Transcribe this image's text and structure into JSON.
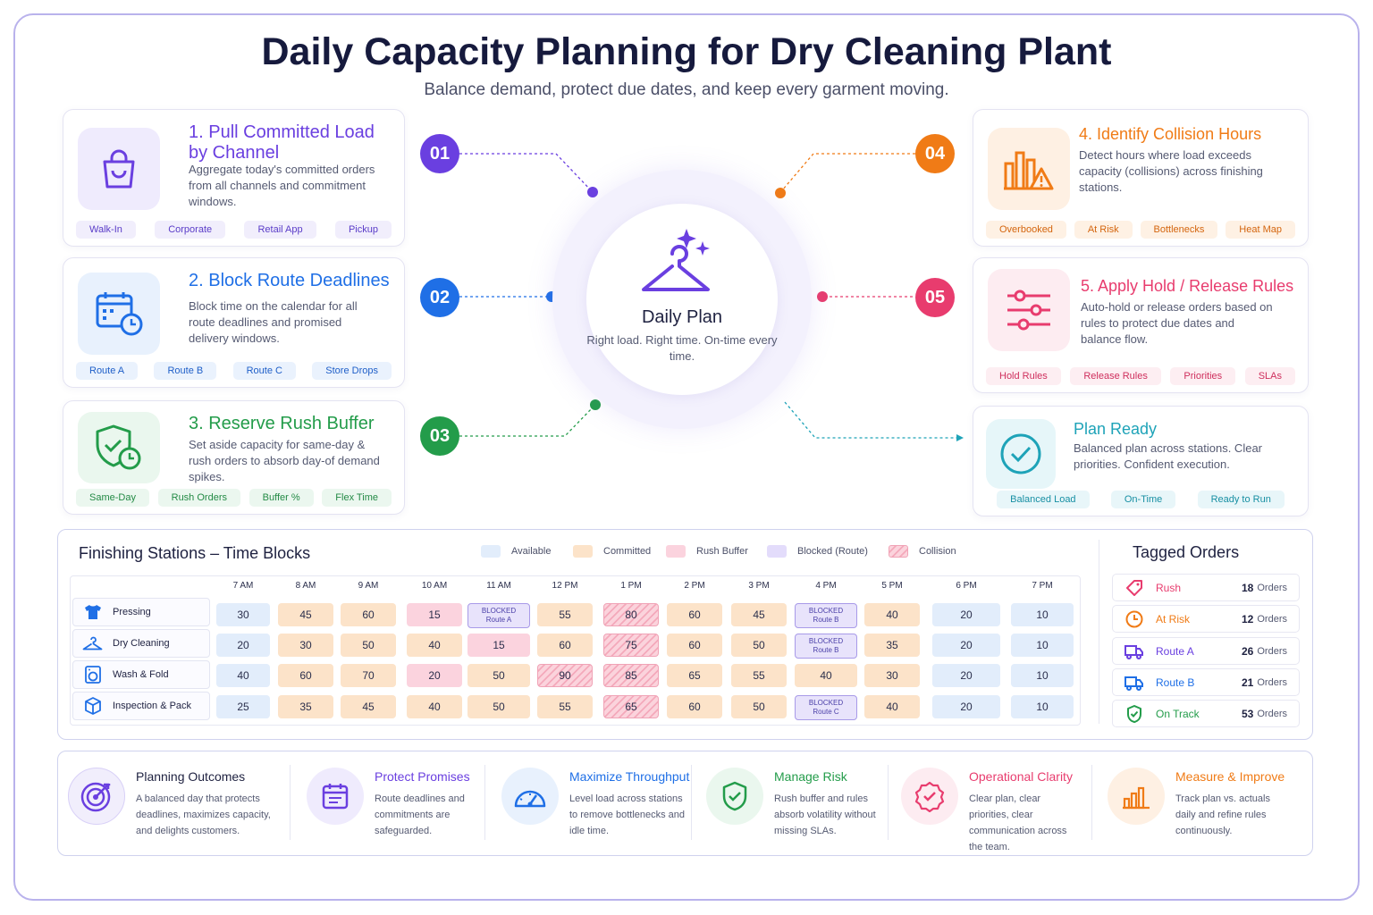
{
  "header": {
    "title": "Daily Capacity Planning for Dry Cleaning Plant",
    "subtitle": "Balance demand, protect due dates, and keep every garment moving."
  },
  "colors": {
    "purple": "#6a3fe0",
    "blue": "#1f6fe6",
    "green": "#239c4a",
    "orange": "#f07b16",
    "pink": "#e83c6e",
    "teal": "#1ea3b8"
  },
  "steps": [
    {
      "num": "01",
      "title": "1. Pull Committed Load by Channel",
      "desc": "Aggregate today's committed orders from all channels and commitment windows.",
      "icon": "shopping-bag-icon",
      "tags": [
        "Walk-In",
        "Corporate",
        "Retail App",
        "Pickup"
      ]
    },
    {
      "num": "02",
      "title": "2. Block Route Deadlines",
      "desc": "Block time on the calendar for all route deadlines and promised delivery windows.",
      "icon": "calendar-clock-icon",
      "tags": [
        "Route A",
        "Route B",
        "Route C",
        "Store Drops"
      ]
    },
    {
      "num": "03",
      "title": "3. Reserve Rush Buffer",
      "desc": "Set aside capacity for same-day & rush orders to absorb day-of demand spikes.",
      "icon": "shield-clock-icon",
      "tags": [
        "Same-Day",
        "Rush Orders",
        "Buffer %",
        "Flex Time"
      ]
    },
    {
      "num": "04",
      "title": "4. Identify Collision Hours",
      "desc": "Detect hours where load exceeds capacity (collisions) across finishing stations.",
      "icon": "bar-chart-warning-icon",
      "tags": [
        "Overbooked",
        "At Risk",
        "Bottlenecks",
        "Heat Map"
      ]
    },
    {
      "num": "05",
      "title": "5. Apply Hold / Release Rules",
      "desc": "Auto-hold or release orders based on rules to protect due dates and balance flow.",
      "icon": "sliders-icon",
      "tags": [
        "Hold Rules",
        "Release Rules",
        "Priorities",
        "SLAs"
      ]
    }
  ],
  "plan_ready": {
    "title": "Plan Ready",
    "desc": "Balanced plan across stations. Clear priorities. Confident execution.",
    "tags": [
      "Balanced Load",
      "On-Time",
      "Ready to Run"
    ]
  },
  "hub": {
    "title": "Daily Plan",
    "sub": "Right load. Right time. On-time every time."
  },
  "stations": {
    "title": "Finishing Stations – Time Blocks",
    "legend": [
      "Available",
      "Committed",
      "Rush Buffer",
      "Blocked (Route)",
      "Collision"
    ],
    "hours": [
      "7 AM",
      "8 AM",
      "9 AM",
      "10 AM",
      "11 AM",
      "12 PM",
      "1 PM",
      "2 PM",
      "3 PM",
      "4 PM",
      "5 PM",
      "6 PM",
      "7 PM"
    ],
    "rows": [
      {
        "name": "Pressing",
        "icon": "shirt-icon",
        "cells": [
          {
            "t": "a",
            "v": "30"
          },
          {
            "t": "c",
            "v": "45"
          },
          {
            "t": "c",
            "v": "60"
          },
          {
            "t": "r",
            "v": "15"
          },
          {
            "t": "b",
            "v": "BLOCKED",
            "s": "Route A"
          },
          {
            "t": "c",
            "v": "55"
          },
          {
            "t": "x",
            "v": "80"
          },
          {
            "t": "c",
            "v": "60"
          },
          {
            "t": "c",
            "v": "45"
          },
          {
            "t": "b",
            "v": "BLOCKED",
            "s": "Route B"
          },
          {
            "t": "c",
            "v": "40"
          },
          {
            "t": "a",
            "v": "20"
          },
          {
            "t": "a",
            "v": "10"
          }
        ]
      },
      {
        "name": "Dry Cleaning",
        "icon": "hanger-icon",
        "cells": [
          {
            "t": "a",
            "v": "20"
          },
          {
            "t": "c",
            "v": "30"
          },
          {
            "t": "c",
            "v": "50"
          },
          {
            "t": "c",
            "v": "40"
          },
          {
            "t": "r",
            "v": "15"
          },
          {
            "t": "c",
            "v": "60"
          },
          {
            "t": "x",
            "v": "75"
          },
          {
            "t": "c",
            "v": "60"
          },
          {
            "t": "c",
            "v": "50"
          },
          {
            "t": "b",
            "v": "BLOCKED",
            "s": "Route B"
          },
          {
            "t": "c",
            "v": "35"
          },
          {
            "t": "a",
            "v": "20"
          },
          {
            "t": "a",
            "v": "10"
          }
        ]
      },
      {
        "name": "Wash & Fold",
        "icon": "washing-machine-icon",
        "cells": [
          {
            "t": "a",
            "v": "40"
          },
          {
            "t": "c",
            "v": "60"
          },
          {
            "t": "c",
            "v": "70"
          },
          {
            "t": "r",
            "v": "20"
          },
          {
            "t": "c",
            "v": "50"
          },
          {
            "t": "x",
            "v": "90"
          },
          {
            "t": "x",
            "v": "85"
          },
          {
            "t": "c",
            "v": "65"
          },
          {
            "t": "c",
            "v": "55"
          },
          {
            "t": "c",
            "v": "40"
          },
          {
            "t": "c",
            "v": "30"
          },
          {
            "t": "a",
            "v": "20"
          },
          {
            "t": "a",
            "v": "10"
          }
        ]
      },
      {
        "name": "Inspection & Pack",
        "icon": "box-icon",
        "cells": [
          {
            "t": "a",
            "v": "25"
          },
          {
            "t": "c",
            "v": "35"
          },
          {
            "t": "c",
            "v": "45"
          },
          {
            "t": "c",
            "v": "40"
          },
          {
            "t": "c",
            "v": "50"
          },
          {
            "t": "c",
            "v": "55"
          },
          {
            "t": "x",
            "v": "65"
          },
          {
            "t": "c",
            "v": "60"
          },
          {
            "t": "c",
            "v": "50"
          },
          {
            "t": "b",
            "v": "BLOCKED",
            "s": "Route C"
          },
          {
            "t": "c",
            "v": "40"
          },
          {
            "t": "a",
            "v": "20"
          },
          {
            "t": "a",
            "v": "10"
          }
        ]
      }
    ]
  },
  "tagged": {
    "title": "Tagged Orders",
    "unit": "Orders",
    "items": [
      {
        "name": "Rush",
        "count": "18",
        "icon": "tag-icon",
        "color": "#e83c6e"
      },
      {
        "name": "At Risk",
        "count": "12",
        "icon": "clock-icon",
        "color": "#f07b16"
      },
      {
        "name": "Route A",
        "count": "26",
        "icon": "truck-icon",
        "color": "#6a3fe0"
      },
      {
        "name": "Route B",
        "count": "21",
        "icon": "truck-icon",
        "color": "#1f6fe6"
      },
      {
        "name": "On Track",
        "count": "53",
        "icon": "shield-check-icon",
        "color": "#239c4a"
      }
    ]
  },
  "outcomes": [
    {
      "title": "Planning Outcomes",
      "desc": "A balanced day that protects deadlines, maximizes capacity, and delights customers.",
      "icon": "target-icon",
      "color": "#1e2140"
    },
    {
      "title": "Protect Promises",
      "desc": "Route deadlines and commitments are safeguarded.",
      "icon": "calendar-icon",
      "color": "#6a3fe0"
    },
    {
      "title": "Maximize Throughput",
      "desc": "Level load across stations to remove bottlenecks and idle time.",
      "icon": "gauge-icon",
      "color": "#1f6fe6"
    },
    {
      "title": "Manage Risk",
      "desc": "Rush buffer and rules absorb volatility without missing SLAs.",
      "icon": "shield-check-icon",
      "color": "#239c4a"
    },
    {
      "title": "Operational Clarity",
      "desc": "Clear plan, clear priorities, clear communication across the team.",
      "icon": "badge-check-icon",
      "color": "#e83c6e"
    },
    {
      "title": "Measure & Improve",
      "desc": "Track plan vs. actuals daily and refine rules continuously.",
      "icon": "bar-chart-icon",
      "color": "#f07b16"
    }
  ]
}
